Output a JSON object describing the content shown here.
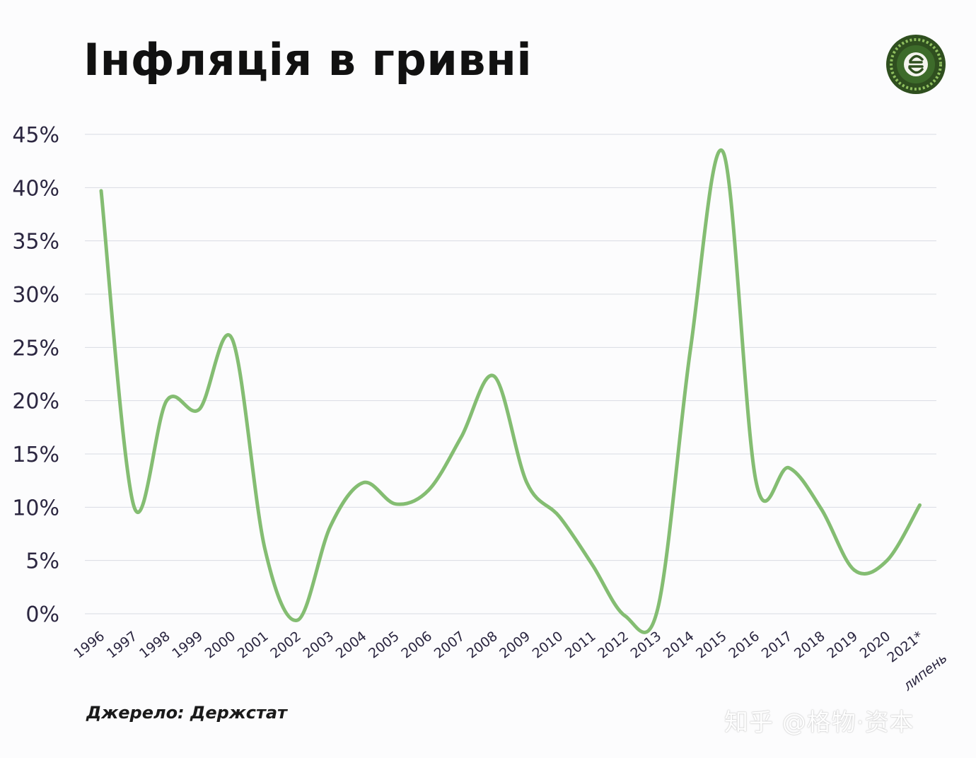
{
  "title": "Інфляція в гривні",
  "source_note": "Джерело: Держстат",
  "watermark": "知乎 @格物·资本",
  "logo_icon": "currency-badge-icon",
  "colors": {
    "line": "#84bd72",
    "grid": "#d9dbe3",
    "text": "#2b2640",
    "logo_dark": "#2f4f1f",
    "logo_light": "#8fbf5f"
  },
  "chart_data": {
    "type": "line",
    "title": "Інфляція в гривні",
    "xlabel": "",
    "ylabel": "",
    "categories": [
      "1996",
      "1997",
      "1998",
      "1999",
      "2000",
      "2001",
      "2002",
      "2003",
      "2004",
      "2005",
      "2006",
      "2007",
      "2008",
      "2009",
      "2010",
      "2011",
      "2012",
      "2013",
      "2014",
      "2015",
      "2016",
      "2017",
      "2018",
      "2019",
      "2020",
      "2021*"
    ],
    "last_category_note": "липень",
    "series": [
      {
        "values": [
          39.7,
          10.1,
          20.0,
          19.2,
          25.8,
          6.1,
          -0.6,
          8.2,
          12.3,
          10.3,
          11.6,
          16.6,
          22.3,
          12.3,
          9.1,
          4.6,
          -0.2,
          0.5,
          24.9,
          43.3,
          12.4,
          13.7,
          9.8,
          4.1,
          5.0,
          10.2
        ]
      }
    ],
    "yticks": [
      "0%",
      "5%",
      "10%",
      "15%",
      "20%",
      "25%",
      "30%",
      "35%",
      "40%",
      "45%"
    ],
    "ylim": [
      0,
      45
    ],
    "grid": true,
    "legend": "none"
  }
}
